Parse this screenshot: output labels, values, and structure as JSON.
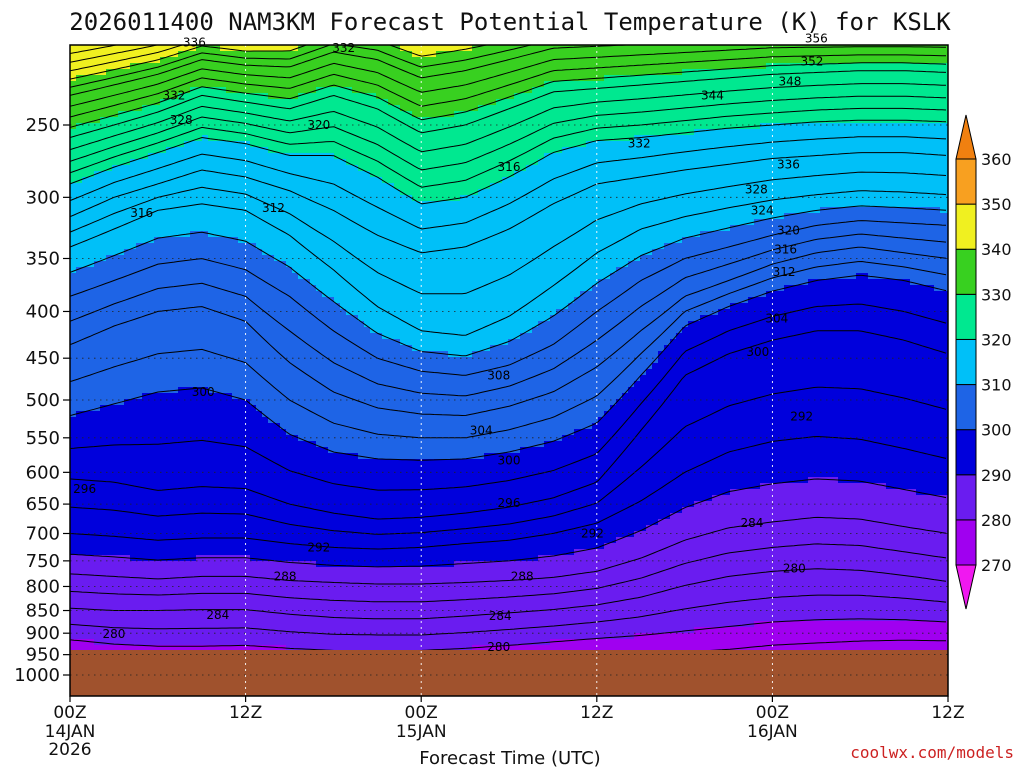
{
  "chart_data": {
    "type": "heatmap",
    "title": "2026011400 NAM3KM Forecast Potential Temperature (K) for KSLK",
    "xlabel": "Forecast Time (UTC)",
    "ylabel": "",
    "x_ticks": [
      {
        "hours": 0,
        "line1": "00Z",
        "line2": "14JAN",
        "line3": "2026"
      },
      {
        "hours": 12,
        "line1": "12Z",
        "line2": "",
        "line3": ""
      },
      {
        "hours": 24,
        "line1": "00Z",
        "line2": "15JAN",
        "line3": ""
      },
      {
        "hours": 36,
        "line1": "12Z",
        "line2": "",
        "line3": ""
      },
      {
        "hours": 48,
        "line1": "00Z",
        "line2": "16JAN",
        "line3": ""
      },
      {
        "hours": 60,
        "line1": "12Z",
        "line2": "",
        "line3": ""
      }
    ],
    "xlim_hours": [
      0,
      60
    ],
    "y_ticks": [
      "250",
      "300",
      "350",
      "400",
      "450",
      "500",
      "550",
      "600",
      "650",
      "700",
      "750",
      "800",
      "850",
      "900",
      "950",
      "1000"
    ],
    "ylim_hPa": [
      200,
      1030
    ],
    "y_scale": "log-pressure",
    "surface_pressure_hPa": 945,
    "colorbar": {
      "levels": [
        270,
        280,
        290,
        300,
        310,
        320,
        330,
        340,
        350,
        360
      ],
      "labels": [
        "270",
        "280",
        "290",
        "300",
        "310",
        "320",
        "330",
        "340",
        "350",
        "360"
      ],
      "colors": [
        "#f018f0",
        "#a000f0",
        "#6a1cf0",
        "#0000dc",
        "#1e64e6",
        "#00c0f8",
        "#00e890",
        "#38d020",
        "#f0f020",
        "#f8a020",
        "#f08010"
      ]
    },
    "contour_interval_K": 2,
    "time_hours": [
      0,
      3,
      6,
      9,
      12,
      15,
      18,
      21,
      24,
      27,
      30,
      33,
      36,
      39,
      42,
      45,
      48,
      51,
      54,
      57,
      60
    ],
    "isentropes": [
      {
        "theta": 280,
        "pressure_hPa": [
          915,
          925,
          930,
          930,
          928,
          935,
          940,
          940,
          940,
          935,
          928,
          920,
          912,
          905,
          895,
          885,
          875,
          870,
          868,
          870,
          875
        ]
      },
      {
        "theta": 284,
        "pressure_hPa": [
          845,
          850,
          850,
          848,
          848,
          858,
          865,
          868,
          868,
          862,
          855,
          848,
          838,
          822,
          798,
          780,
          770,
          765,
          768,
          778,
          790
        ]
      },
      {
        "theta": 288,
        "pressure_hPa": [
          775,
          780,
          785,
          780,
          780,
          788,
          792,
          795,
          795,
          792,
          788,
          782,
          770,
          745,
          712,
          690,
          680,
          672,
          675,
          688,
          700
        ]
      },
      {
        "theta": 292,
        "pressure_hPa": [
          700,
          705,
          712,
          708,
          708,
          718,
          725,
          728,
          725,
          718,
          712,
          700,
          682,
          645,
          600,
          570,
          555,
          548,
          552,
          565,
          580
        ]
      },
      {
        "theta": 296,
        "pressure_hPa": [
          610,
          615,
          628,
          622,
          625,
          650,
          665,
          675,
          672,
          665,
          655,
          640,
          615,
          540,
          470,
          445,
          430,
          420,
          420,
          430,
          445
        ]
      },
      {
        "theta": 300,
        "pressure_hPa": [
          520,
          505,
          490,
          485,
          500,
          545,
          570,
          580,
          582,
          580,
          570,
          555,
          530,
          470,
          415,
          395,
          380,
          370,
          365,
          370,
          380
        ]
      },
      {
        "theta": 304,
        "pressure_hPa": [
          435,
          415,
          400,
          395,
          410,
          455,
          490,
          510,
          518,
          520,
          508,
          490,
          460,
          420,
          385,
          370,
          355,
          345,
          340,
          345,
          350
        ]
      },
      {
        "theta": 308,
        "pressure_hPa": [
          385,
          370,
          355,
          350,
          360,
          385,
          420,
          450,
          465,
          470,
          458,
          435,
          400,
          370,
          350,
          340,
          330,
          322,
          318,
          320,
          322
        ]
      },
      {
        "theta": 312,
        "pressure_hPa": [
          340,
          325,
          310,
          305,
          310,
          330,
          360,
          395,
          420,
          425,
          405,
          375,
          345,
          325,
          315,
          308,
          302,
          298,
          295,
          296,
          298
        ]
      },
      {
        "theta": 316,
        "pressure_hPa": [
          315,
          300,
          290,
          280,
          285,
          295,
          310,
          330,
          345,
          340,
          325,
          305,
          290,
          285,
          280,
          276,
          272,
          270,
          268,
          268,
          270
        ]
      },
      {
        "theta": 320,
        "pressure_hPa": [
          290,
          278,
          268,
          258,
          262,
          270,
          270,
          285,
          305,
          300,
          285,
          268,
          260,
          258,
          255,
          252,
          250,
          248,
          247,
          247,
          248
        ]
      },
      {
        "theta": 328,
        "pressure_hPa": [
          258,
          250,
          242,
          232,
          236,
          240,
          232,
          240,
          255,
          250,
          240,
          230,
          228,
          226,
          224,
          222,
          220,
          219,
          218,
          218,
          219
        ]
      },
      {
        "theta": 336,
        "pressure_hPa": [
          232,
          226,
          220,
          212,
          215,
          216,
          208,
          212,
          222,
          218,
          212,
          206,
          205,
          204,
          203,
          202,
          201,
          201,
          201,
          201,
          201
        ]
      }
    ],
    "contour_labels": [
      {
        "text": "336",
        "hours": 8.5,
        "pressure_hPa": 203
      },
      {
        "text": "332",
        "hours": 18.7,
        "pressure_hPa": 206
      },
      {
        "text": "356",
        "hours": 51.0,
        "pressure_hPa": 201
      },
      {
        "text": "352",
        "hours": 50.7,
        "pressure_hPa": 213
      },
      {
        "text": "348",
        "hours": 49.2,
        "pressure_hPa": 224
      },
      {
        "text": "344",
        "hours": 43.9,
        "pressure_hPa": 232
      },
      {
        "text": "332",
        "hours": 7.1,
        "pressure_hPa": 232
      },
      {
        "text": "328",
        "hours": 7.6,
        "pressure_hPa": 247
      },
      {
        "text": "320",
        "hours": 17.0,
        "pressure_hPa": 250
      },
      {
        "text": "332",
        "hours": 38.9,
        "pressure_hPa": 262
      },
      {
        "text": "336",
        "hours": 49.1,
        "pressure_hPa": 276
      },
      {
        "text": "316",
        "hours": 30.0,
        "pressure_hPa": 278
      },
      {
        "text": "328",
        "hours": 46.9,
        "pressure_hPa": 294
      },
      {
        "text": "312",
        "hours": 13.9,
        "pressure_hPa": 308
      },
      {
        "text": "316",
        "hours": 4.9,
        "pressure_hPa": 312
      },
      {
        "text": "324",
        "hours": 47.3,
        "pressure_hPa": 310
      },
      {
        "text": "320",
        "hours": 49.1,
        "pressure_hPa": 326
      },
      {
        "text": "316",
        "hours": 48.9,
        "pressure_hPa": 342
      },
      {
        "text": "312",
        "hours": 48.8,
        "pressure_hPa": 362
      },
      {
        "text": "304",
        "hours": 48.3,
        "pressure_hPa": 407
      },
      {
        "text": "300",
        "hours": 47.0,
        "pressure_hPa": 443
      },
      {
        "text": "308",
        "hours": 29.3,
        "pressure_hPa": 470
      },
      {
        "text": "300",
        "hours": 9.1,
        "pressure_hPa": 490
      },
      {
        "text": "292",
        "hours": 50.0,
        "pressure_hPa": 521
      },
      {
        "text": "304",
        "hours": 28.1,
        "pressure_hPa": 540
      },
      {
        "text": "300",
        "hours": 30.0,
        "pressure_hPa": 582
      },
      {
        "text": "296",
        "hours": 1.0,
        "pressure_hPa": 626
      },
      {
        "text": "296",
        "hours": 30.0,
        "pressure_hPa": 648
      },
      {
        "text": "284",
        "hours": 46.6,
        "pressure_hPa": 682
      },
      {
        "text": "292",
        "hours": 35.7,
        "pressure_hPa": 700
      },
      {
        "text": "292",
        "hours": 17.0,
        "pressure_hPa": 725
      },
      {
        "text": "280",
        "hours": 49.5,
        "pressure_hPa": 765
      },
      {
        "text": "288",
        "hours": 14.7,
        "pressure_hPa": 780
      },
      {
        "text": "288",
        "hours": 30.9,
        "pressure_hPa": 780
      },
      {
        "text": "284",
        "hours": 10.1,
        "pressure_hPa": 860
      },
      {
        "text": "284",
        "hours": 29.4,
        "pressure_hPa": 862
      },
      {
        "text": "280",
        "hours": 3.0,
        "pressure_hPa": 902
      },
      {
        "text": "280",
        "hours": 29.3,
        "pressure_hPa": 932
      }
    ]
  },
  "credit": "coolwx.com/models"
}
